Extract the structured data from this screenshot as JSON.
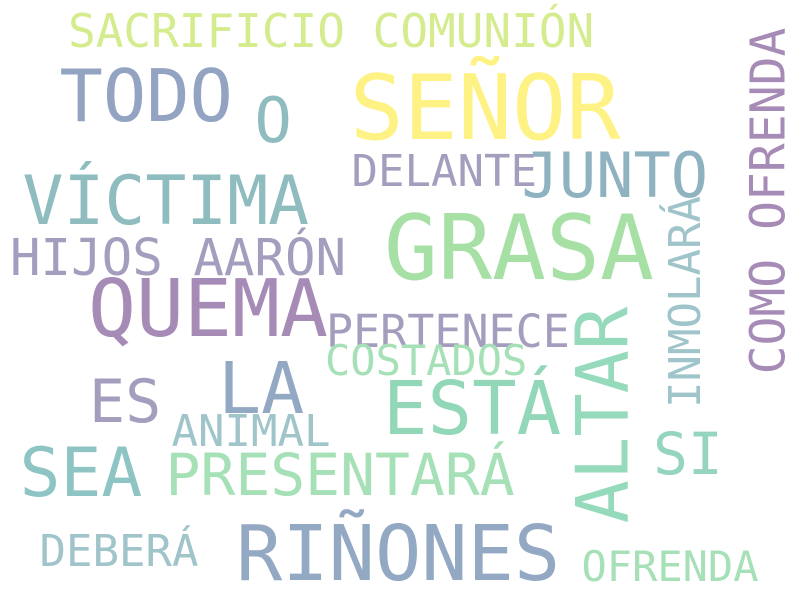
{
  "words": [
    {
      "text": "SACRIFICIO COMUNIÓN",
      "color": "#d4ec8e"
    },
    {
      "text": "TODO",
      "color": "#93a3c2"
    },
    {
      "text": "SEÑOR",
      "color": "#fff284"
    },
    {
      "text": "O",
      "color": "#8fbcbf"
    },
    {
      "text": "COMO OFRENDA",
      "color": "#a68bb6"
    },
    {
      "text": "DELANTE",
      "color": "#a59dbd"
    },
    {
      "text": "JUNTO",
      "color": "#8fb2c1"
    },
    {
      "text": "VÍCTIMA",
      "color": "#8fbcbf"
    },
    {
      "text": "GRASA",
      "color": "#a6e0a4"
    },
    {
      "text": "INMOLARÁ",
      "color": "#9fc4ca"
    },
    {
      "text": "HIJOS AARÓN",
      "color": "#a59dbd"
    },
    {
      "text": "QUEMA",
      "color": "#a68bb6"
    },
    {
      "text": "PERTENECE",
      "color": "#a59dbd"
    },
    {
      "text": "ALTAR",
      "color": "#96dabc"
    },
    {
      "text": "COSTADOS",
      "color": "#a6e0b7"
    },
    {
      "text": "ES",
      "color": "#a59dbd"
    },
    {
      "text": "LA",
      "color": "#93a8c2"
    },
    {
      "text": "ESTÁ",
      "color": "#92d8b8"
    },
    {
      "text": "ANIMAL",
      "color": "#9fc4ca"
    },
    {
      "text": "SI",
      "color": "#96d4c2"
    },
    {
      "text": "SEA",
      "color": "#8fc4c4"
    },
    {
      "text": "PRESENTARÁ",
      "color": "#a6e0b7"
    },
    {
      "text": "RIÑONES",
      "color": "#93a8c2"
    },
    {
      "text": "DEBERÁ",
      "color": "#9fc4ca"
    },
    {
      "text": "OFRENDA",
      "color": "#a6e0b7"
    }
  ]
}
